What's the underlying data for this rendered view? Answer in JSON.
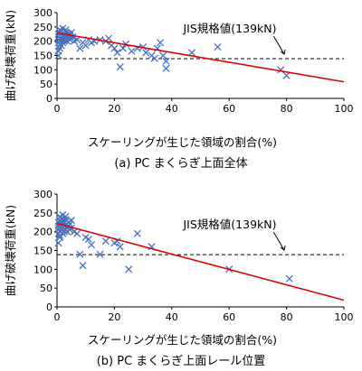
{
  "chart_data": [
    {
      "type": "scatter",
      "caption": "(a) PC まくらぎ上面全体",
      "xlabel": "スケーリングが生じた領域の割合(%)",
      "ylabel": "曲げ破壊荷重(kN)",
      "xlim": [
        0,
        100
      ],
      "ylim": [
        0,
        300
      ],
      "xticks": [
        "0",
        "20",
        "40",
        "60",
        "80",
        "100"
      ],
      "yticks": [
        "0",
        "50",
        "100",
        "150",
        "200",
        "250",
        "300"
      ],
      "marker": "x",
      "point_color": "#4472C4",
      "trend_color": "#E00000",
      "trend": [
        [
          0,
          229
        ],
        [
          100,
          58
        ]
      ],
      "reference_line": {
        "y": 139,
        "label": "JIS規格値(139kN)"
      },
      "points": [
        [
          0.5,
          195
        ],
        [
          0.5,
          205
        ],
        [
          0.5,
          215
        ],
        [
          0.5,
          225
        ],
        [
          1,
          200
        ],
        [
          1,
          210
        ],
        [
          1,
          220
        ],
        [
          1,
          230
        ],
        [
          1,
          190
        ],
        [
          1,
          240
        ],
        [
          1.5,
          205
        ],
        [
          1.5,
          215
        ],
        [
          1.5,
          225
        ],
        [
          1.5,
          235
        ],
        [
          2,
          195
        ],
        [
          2,
          210
        ],
        [
          2,
          220
        ],
        [
          2,
          230
        ],
        [
          2,
          245
        ],
        [
          2.5,
          200
        ],
        [
          2.5,
          215
        ],
        [
          2.5,
          225
        ],
        [
          3,
          205
        ],
        [
          3,
          218
        ],
        [
          3,
          232
        ],
        [
          3,
          240
        ],
        [
          3.5,
          200
        ],
        [
          3.5,
          212
        ],
        [
          3.5,
          228
        ],
        [
          4,
          215
        ],
        [
          4,
          225
        ],
        [
          4.5,
          205
        ],
        [
          4.5,
          220
        ],
        [
          5,
          210
        ],
        [
          5,
          230
        ],
        [
          5.5,
          215
        ],
        [
          0.5,
          165
        ],
        [
          0.5,
          150
        ],
        [
          1,
          175
        ],
        [
          1.5,
          185
        ],
        [
          6,
          200
        ],
        [
          7,
          205
        ],
        [
          8,
          175
        ],
        [
          9,
          195
        ],
        [
          10,
          185
        ],
        [
          11,
          205
        ],
        [
          12,
          195
        ],
        [
          13,
          200
        ],
        [
          15,
          205
        ],
        [
          17,
          200
        ],
        [
          18,
          210
        ],
        [
          19,
          185
        ],
        [
          20,
          175
        ],
        [
          21,
          160
        ],
        [
          23,
          175
        ],
        [
          24,
          190
        ],
        [
          26,
          165
        ],
        [
          28,
          175
        ],
        [
          30,
          180
        ],
        [
          31,
          160
        ],
        [
          33,
          150
        ],
        [
          34,
          140
        ],
        [
          35,
          175
        ],
        [
          36,
          195
        ],
        [
          37,
          150
        ],
        [
          38,
          130
        ],
        [
          22,
          110
        ],
        [
          38,
          105
        ],
        [
          47,
          160
        ],
        [
          56,
          180
        ],
        [
          78,
          100
        ],
        [
          80,
          80
        ]
      ]
    },
    {
      "type": "scatter",
      "caption": "(b) PC まくらぎ上面レール位置",
      "xlabel": "スケーリングが生じた領域の割合(%)",
      "ylabel": "曲げ破壊荷重(kN)",
      "xlim": [
        0,
        100
      ],
      "ylim": [
        0,
        300
      ],
      "xticks": [
        "0",
        "20",
        "40",
        "60",
        "80",
        "100"
      ],
      "yticks": [
        "0",
        "50",
        "100",
        "150",
        "200",
        "250",
        "300"
      ],
      "marker": "x",
      "point_color": "#4472C4",
      "trend_color": "#E00000",
      "trend": [
        [
          0,
          222
        ],
        [
          100,
          18
        ]
      ],
      "reference_line": {
        "y": 139,
        "label": "JIS規格値(139kN)"
      },
      "points": [
        [
          0.5,
          195
        ],
        [
          0.5,
          205
        ],
        [
          0.5,
          215
        ],
        [
          0.5,
          225
        ],
        [
          1,
          200
        ],
        [
          1,
          210
        ],
        [
          1,
          220
        ],
        [
          1,
          230
        ],
        [
          1,
          190
        ],
        [
          1,
          240
        ],
        [
          1.5,
          205
        ],
        [
          1.5,
          215
        ],
        [
          1.5,
          225
        ],
        [
          1.5,
          235
        ],
        [
          2,
          195
        ],
        [
          2,
          210
        ],
        [
          2,
          220
        ],
        [
          2,
          230
        ],
        [
          2,
          245
        ],
        [
          2.5,
          200
        ],
        [
          2.5,
          215
        ],
        [
          2.5,
          225
        ],
        [
          3,
          205
        ],
        [
          3,
          218
        ],
        [
          3,
          232
        ],
        [
          3,
          240
        ],
        [
          3.5,
          200
        ],
        [
          3.5,
          212
        ],
        [
          4,
          215
        ],
        [
          4,
          225
        ],
        [
          4.5,
          205
        ],
        [
          4.5,
          220
        ],
        [
          5,
          210
        ],
        [
          5,
          230
        ],
        [
          0.5,
          170
        ],
        [
          1,
          185
        ],
        [
          6,
          200
        ],
        [
          7,
          195
        ],
        [
          8,
          140
        ],
        [
          9,
          110
        ],
        [
          10,
          185
        ],
        [
          11,
          180
        ],
        [
          12,
          165
        ],
        [
          15,
          140
        ],
        [
          17,
          175
        ],
        [
          20,
          170
        ],
        [
          21,
          175
        ],
        [
          22,
          160
        ],
        [
          25,
          100
        ],
        [
          28,
          195
        ],
        [
          33,
          160
        ],
        [
          60,
          100
        ],
        [
          81,
          75
        ]
      ]
    }
  ]
}
